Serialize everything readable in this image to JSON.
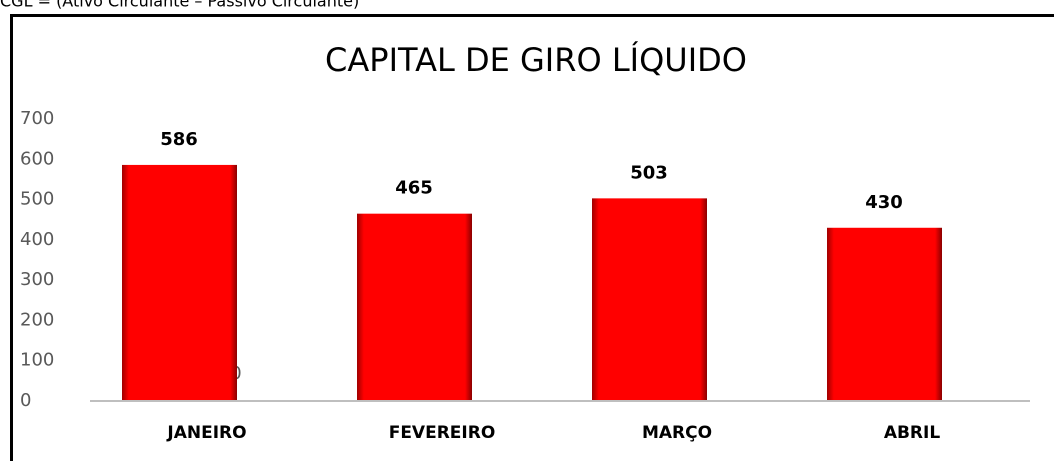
{
  "caption": "CGL = (Ativo Circulante – Passivo Circulante)",
  "chart_data": {
    "type": "bar",
    "title": "CAPITAL DE GIRO LÍQUIDO",
    "categories": [
      "JANEIRO",
      "FEVEREIRO",
      "MARÇO",
      "ABRIL"
    ],
    "values": [
      586,
      465,
      503,
      430
    ],
    "color": "#ff0000",
    "ylim": [
      0,
      700
    ],
    "yticks": [
      0,
      100,
      200,
      300,
      400,
      500,
      600,
      700
    ],
    "grid": false,
    "annotations": [
      "0"
    ]
  }
}
